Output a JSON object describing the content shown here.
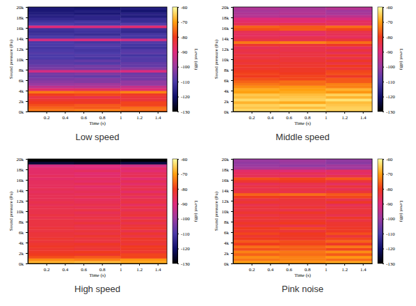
{
  "chart_data": [
    {
      "type": "heatmap",
      "title": "Low speed",
      "x_label": "Time (s)",
      "y_label": "Sound pressure (Pa)",
      "colorbar_label": "Level (dB)",
      "xlim": [
        0,
        1.5
      ],
      "ylim": [
        0,
        20000
      ],
      "xticks": [
        0.2,
        0.4,
        0.6,
        0.8,
        1,
        1.2,
        1.4
      ],
      "yticks": [
        {
          "value": 0,
          "label": "0k"
        },
        {
          "value": 2000,
          "label": "2k"
        },
        {
          "value": 4000,
          "label": "4k"
        },
        {
          "value": 6000,
          "label": "6k"
        },
        {
          "value": 8000,
          "label": "8k"
        },
        {
          "value": 10000,
          "label": "10k"
        },
        {
          "value": 12000,
          "label": "12k"
        },
        {
          "value": 14000,
          "label": "14k"
        },
        {
          "value": 16000,
          "label": "16k"
        },
        {
          "value": 18000,
          "label": "18k"
        },
        {
          "value": 20000,
          "label": "20k"
        }
      ],
      "x_edges": [
        0,
        0.5,
        1,
        1.5
      ],
      "y_edges": [
        0,
        500,
        1000,
        1500,
        2000,
        2500,
        3000,
        3500,
        4000,
        4500,
        5000,
        5500,
        6000,
        6500,
        7000,
        7500,
        8000,
        8500,
        9000,
        9500,
        10000,
        10500,
        11000,
        11500,
        12000,
        12500,
        13000,
        13500,
        14000,
        14500,
        15000,
        15500,
        16000,
        16500,
        17000,
        17500,
        18000,
        18500,
        19000,
        19500,
        20000
      ],
      "cells": [
        [
          -74,
          -73,
          -75
        ],
        [
          -76,
          -77,
          -75
        ],
        [
          -78,
          -77,
          -79
        ],
        [
          -80,
          -81,
          -79
        ],
        [
          -82,
          -81,
          -83
        ],
        [
          -84,
          -85,
          -83
        ],
        [
          -80,
          -79,
          -81
        ],
        [
          -74,
          -75,
          -73
        ],
        [
          -88,
          -87,
          -89
        ],
        [
          -95,
          -96,
          -94
        ],
        [
          -100,
          -99,
          -101
        ],
        [
          -102,
          -103,
          -101
        ],
        [
          -104,
          -103,
          -105
        ],
        [
          -106,
          -107,
          -105
        ],
        [
          -105,
          -104,
          -106
        ],
        [
          -92,
          -93,
          -91
        ],
        [
          -104,
          -105,
          -103
        ],
        [
          -106,
          -105,
          -107
        ],
        [
          -108,
          -109,
          -107
        ],
        [
          -108,
          -107,
          -109
        ],
        [
          -110,
          -111,
          -109
        ],
        [
          -110,
          -109,
          -111
        ],
        [
          -109,
          -110,
          -108
        ],
        [
          -110,
          -111,
          -109
        ],
        [
          -111,
          -110,
          -112
        ],
        [
          -110,
          -109,
          -111
        ],
        [
          -110,
          -111,
          -109
        ],
        [
          -92,
          -91,
          -93
        ],
        [
          -110,
          -109,
          -111
        ],
        [
          -112,
          -113,
          -111
        ],
        [
          -113,
          -112,
          -114
        ],
        [
          -112,
          -111,
          -113
        ],
        [
          -90,
          -91,
          -89
        ],
        [
          -110,
          -111,
          -109
        ],
        [
          -112,
          -111,
          -113
        ],
        [
          -114,
          -115,
          -113
        ],
        [
          -116,
          -115,
          -117
        ],
        [
          -117,
          -118,
          -116
        ],
        [
          -118,
          -117,
          -119
        ],
        [
          -118,
          -119,
          -117
        ]
      ],
      "color_range": [
        -130,
        -60
      ],
      "color_ticks": [
        -60,
        -70,
        -80,
        -90,
        -100,
        -110,
        -120,
        -130
      ]
    },
    {
      "type": "heatmap",
      "title": "Middle speed",
      "x_label": "Time (s)",
      "y_label": "Sound pressure (Pa)",
      "colorbar_label": "Level (dB)",
      "xlim": [
        0,
        1.5
      ],
      "ylim": [
        0,
        20000
      ],
      "xticks": [
        0.2,
        0.4,
        0.6,
        0.8,
        1,
        1.2,
        1.4
      ],
      "yticks": [
        {
          "value": 0,
          "label": "0k"
        },
        {
          "value": 2000,
          "label": "2k"
        },
        {
          "value": 4000,
          "label": "4k"
        },
        {
          "value": 6000,
          "label": "6k"
        },
        {
          "value": 8000,
          "label": "8k"
        },
        {
          "value": 10000,
          "label": "10k"
        },
        {
          "value": 12000,
          "label": "12k"
        },
        {
          "value": 14000,
          "label": "14k"
        },
        {
          "value": 16000,
          "label": "16k"
        },
        {
          "value": 18000,
          "label": "18k"
        },
        {
          "value": 20000,
          "label": "20k"
        }
      ],
      "x_edges": [
        0,
        0.5,
        1,
        1.5
      ],
      "y_edges": [
        0,
        500,
        1000,
        1500,
        2000,
        2500,
        3000,
        3500,
        4000,
        4500,
        5000,
        5500,
        6000,
        6500,
        7000,
        7500,
        8000,
        8500,
        9000,
        9500,
        10000,
        10500,
        11000,
        11500,
        12000,
        12500,
        13000,
        13500,
        14000,
        14500,
        15000,
        15500,
        16000,
        16500,
        17000,
        17500,
        18000,
        18500,
        19000,
        19500,
        20000
      ],
      "cells": [
        [
          -64,
          -63,
          -65
        ],
        [
          -66,
          -67,
          -65
        ],
        [
          -65,
          -64,
          -66
        ],
        [
          -68,
          -69,
          -67
        ],
        [
          -64,
          -65,
          -63
        ],
        [
          -67,
          -66,
          -68
        ],
        [
          -66,
          -67,
          -65
        ],
        [
          -70,
          -69,
          -71
        ],
        [
          -69,
          -70,
          -68
        ],
        [
          -72,
          -71,
          -73
        ],
        [
          -74,
          -75,
          -73
        ],
        [
          -76,
          -75,
          -77
        ],
        [
          -78,
          -79,
          -77
        ],
        [
          -80,
          -79,
          -81
        ],
        [
          -79,
          -80,
          -78
        ],
        [
          -80,
          -81,
          -79
        ],
        [
          -82,
          -81,
          -83
        ],
        [
          -81,
          -82,
          -80
        ],
        [
          -83,
          -82,
          -84
        ],
        [
          -82,
          -83,
          -81
        ],
        [
          -84,
          -83,
          -85
        ],
        [
          -83,
          -84,
          -82
        ],
        [
          -85,
          -84,
          -86
        ],
        [
          -84,
          -85,
          -83
        ],
        [
          -86,
          -85,
          -87
        ],
        [
          -82,
          -83,
          -81
        ],
        [
          -74,
          -73,
          -75
        ],
        [
          -84,
          -85,
          -83
        ],
        [
          -86,
          -85,
          -87
        ],
        [
          -87,
          -88,
          -86
        ],
        [
          -86,
          -87,
          -85
        ],
        [
          -78,
          -77,
          -79
        ],
        [
          -76,
          -77,
          -75
        ],
        [
          -86,
          -85,
          -87
        ],
        [
          -88,
          -89,
          -87
        ],
        [
          -90,
          -89,
          -91
        ],
        [
          -96,
          -97,
          -95
        ],
        [
          -97,
          -96,
          -98
        ],
        [
          -98,
          -97,
          -99
        ],
        [
          -97,
          -98,
          -96
        ]
      ],
      "color_range": [
        -130,
        -60
      ],
      "color_ticks": [
        -60,
        -70,
        -80,
        -90,
        -100,
        -110,
        -120,
        -130
      ]
    },
    {
      "type": "heatmap",
      "title": "High speed",
      "x_label": "Time (s)",
      "y_label": "Sound pressure (Pa)",
      "colorbar_label": "Level (dB)",
      "xlim": [
        0,
        1.5
      ],
      "ylim": [
        0,
        20000
      ],
      "xticks": [
        0.2,
        0.4,
        0.6,
        0.8,
        1,
        1.2,
        1.4
      ],
      "yticks": [
        {
          "value": 0,
          "label": "0k"
        },
        {
          "value": 2000,
          "label": "2k"
        },
        {
          "value": 4000,
          "label": "4k"
        },
        {
          "value": 6000,
          "label": "6k"
        },
        {
          "value": 8000,
          "label": "8k"
        },
        {
          "value": 10000,
          "label": "10k"
        },
        {
          "value": 12000,
          "label": "12k"
        },
        {
          "value": 14000,
          "label": "14k"
        },
        {
          "value": 16000,
          "label": "16k"
        },
        {
          "value": 18000,
          "label": "18k"
        },
        {
          "value": 20000,
          "label": "20k"
        }
      ],
      "x_edges": [
        0,
        0.5,
        1,
        1.5
      ],
      "y_edges": [
        0,
        500,
        1000,
        1500,
        2000,
        2500,
        3000,
        3500,
        4000,
        4500,
        5000,
        5500,
        6000,
        6500,
        7000,
        7500,
        8000,
        8500,
        9000,
        9500,
        10000,
        10500,
        11000,
        11500,
        12000,
        12500,
        13000,
        13500,
        14000,
        14500,
        15000,
        15500,
        16000,
        16500,
        17000,
        17500,
        18000,
        18500,
        19000,
        19500,
        20000
      ],
      "cells": [
        [
          -68,
          -67,
          -69
        ],
        [
          -72,
          -73,
          -71
        ],
        [
          -78,
          -77,
          -79
        ],
        [
          -80,
          -81,
          -79
        ],
        [
          -81,
          -80,
          -82
        ],
        [
          -82,
          -83,
          -81
        ],
        [
          -81,
          -82,
          -80
        ],
        [
          -82,
          -81,
          -83
        ],
        [
          -83,
          -84,
          -82
        ],
        [
          -82,
          -83,
          -81
        ],
        [
          -83,
          -82,
          -84
        ],
        [
          -83,
          -84,
          -82
        ],
        [
          -84,
          -83,
          -85
        ],
        [
          -83,
          -84,
          -82
        ],
        [
          -84,
          -85,
          -83
        ],
        [
          -84,
          -83,
          -85
        ],
        [
          -84,
          -85,
          -83
        ],
        [
          -85,
          -84,
          -86
        ],
        [
          -84,
          -85,
          -83
        ],
        [
          -85,
          -86,
          -84
        ],
        [
          -85,
          -84,
          -86
        ],
        [
          -85,
          -86,
          -84
        ],
        [
          -86,
          -85,
          -87
        ],
        [
          -85,
          -86,
          -84
        ],
        [
          -86,
          -87,
          -85
        ],
        [
          -86,
          -85,
          -87
        ],
        [
          -86,
          -87,
          -85
        ],
        [
          -87,
          -86,
          -88
        ],
        [
          -86,
          -87,
          -85
        ],
        [
          -87,
          -88,
          -86
        ],
        [
          -87,
          -86,
          -88
        ],
        [
          -87,
          -88,
          -86
        ],
        [
          -88,
          -87,
          -89
        ],
        [
          -87,
          -88,
          -86
        ],
        [
          -88,
          -89,
          -87
        ],
        [
          -88,
          -87,
          -89
        ],
        [
          -89,
          -90,
          -88
        ],
        [
          -92,
          -91,
          -93
        ],
        [
          -125,
          -126,
          -124
        ],
        [
          -130,
          -130,
          -130
        ]
      ],
      "color_range": [
        -130,
        -60
      ],
      "color_ticks": [
        -60,
        -70,
        -80,
        -90,
        -100,
        -110,
        -120,
        -130
      ]
    },
    {
      "type": "heatmap",
      "title": "Pink noise",
      "x_label": "Time (s)",
      "y_label": "Sound pressure (Pa)",
      "colorbar_label": "Level (dB)",
      "xlim": [
        0,
        1.5
      ],
      "ylim": [
        0,
        20000
      ],
      "xticks": [
        0.2,
        0.4,
        0.6,
        0.8,
        1,
        1.2,
        1.4
      ],
      "yticks": [
        {
          "value": 0,
          "label": "0k"
        },
        {
          "value": 2000,
          "label": "2k"
        },
        {
          "value": 4000,
          "label": "4k"
        },
        {
          "value": 6000,
          "label": "6k"
        },
        {
          "value": 8000,
          "label": "8k"
        },
        {
          "value": 10000,
          "label": "10k"
        },
        {
          "value": 12000,
          "label": "12k"
        },
        {
          "value": 14000,
          "label": "14k"
        },
        {
          "value": 16000,
          "label": "16k"
        },
        {
          "value": 18000,
          "label": "18k"
        },
        {
          "value": 20000,
          "label": "20k"
        }
      ],
      "x_edges": [
        0,
        0.5,
        1,
        1.5
      ],
      "y_edges": [
        0,
        500,
        1000,
        1500,
        2000,
        2500,
        3000,
        3500,
        4000,
        4500,
        5000,
        5500,
        6000,
        6500,
        7000,
        7500,
        8000,
        8500,
        9000,
        9500,
        10000,
        10500,
        11000,
        11500,
        12000,
        12500,
        13000,
        13500,
        14000,
        14500,
        15000,
        15500,
        16000,
        16500,
        17000,
        17500,
        18000,
        18500,
        19000,
        19500,
        20000
      ],
      "cells": [
        [
          -70,
          -71,
          -69
        ],
        [
          -74,
          -73,
          -75
        ],
        [
          -72,
          -73,
          -71
        ],
        [
          -76,
          -75,
          -77
        ],
        [
          -73,
          -74,
          -72
        ],
        [
          -78,
          -77,
          -79
        ],
        [
          -75,
          -76,
          -74
        ],
        [
          -80,
          -79,
          -81
        ],
        [
          -77,
          -78,
          -76
        ],
        [
          -80,
          -81,
          -79
        ],
        [
          -82,
          -81,
          -83
        ],
        [
          -79,
          -80,
          -78
        ],
        [
          -82,
          -83,
          -81
        ],
        [
          -80,
          -79,
          -81
        ],
        [
          -83,
          -84,
          -82
        ],
        [
          -81,
          -80,
          -82
        ],
        [
          -83,
          -82,
          -84
        ],
        [
          -82,
          -83,
          -81
        ],
        [
          -84,
          -83,
          -85
        ],
        [
          -82,
          -81,
          -83
        ],
        [
          -84,
          -85,
          -83
        ],
        [
          -83,
          -82,
          -84
        ],
        [
          -85,
          -84,
          -86
        ],
        [
          -82,
          -83,
          -81
        ],
        [
          -84,
          -83,
          -85
        ],
        [
          -80,
          -81,
          -79
        ],
        [
          -76,
          -75,
          -77
        ],
        [
          -84,
          -85,
          -83
        ],
        [
          -85,
          -84,
          -86
        ],
        [
          -84,
          -85,
          -83
        ],
        [
          -86,
          -85,
          -87
        ],
        [
          -82,
          -81,
          -83
        ],
        [
          -78,
          -79,
          -77
        ],
        [
          -86,
          -87,
          -85
        ],
        [
          -87,
          -86,
          -88
        ],
        [
          -88,
          -89,
          -87
        ],
        [
          -98,
          -97,
          -99
        ],
        [
          -100,
          -101,
          -99
        ],
        [
          -101,
          -100,
          -102
        ],
        [
          -100,
          -99,
          -101
        ]
      ],
      "color_range": [
        -130,
        -60
      ],
      "color_ticks": [
        -60,
        -70,
        -80,
        -90,
        -100,
        -110,
        -120,
        -130
      ]
    }
  ]
}
